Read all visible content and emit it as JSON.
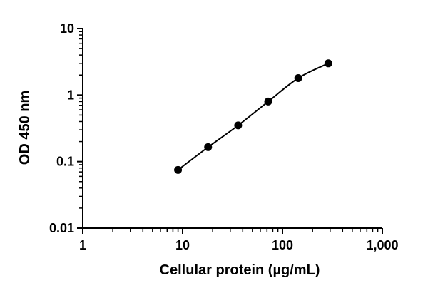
{
  "chart_data": {
    "type": "scatter",
    "title": "",
    "xlabel": "Cellular protein (µg/mL)",
    "ylabel": "OD 450 nm",
    "x_scale": "log",
    "y_scale": "log",
    "xlim": [
      1,
      1000
    ],
    "ylim": [
      0.01,
      10
    ],
    "x_ticks": [
      1,
      10,
      100,
      1000
    ],
    "x_tick_labels": [
      "1",
      "10",
      "100",
      "1,000"
    ],
    "y_ticks": [
      0.01,
      0.1,
      1,
      10
    ],
    "y_tick_labels": [
      "0.01",
      "0.1",
      "1",
      "10"
    ],
    "grid": false,
    "legend": "none",
    "series": [
      {
        "x": [
          9.0,
          18.0,
          36.0,
          72.0,
          144.0,
          288.0
        ],
        "y": [
          0.075,
          0.165,
          0.35,
          0.8,
          1.8,
          3.0
        ],
        "marker": "circle",
        "color": "#000000",
        "fit_line": true
      }
    ]
  }
}
